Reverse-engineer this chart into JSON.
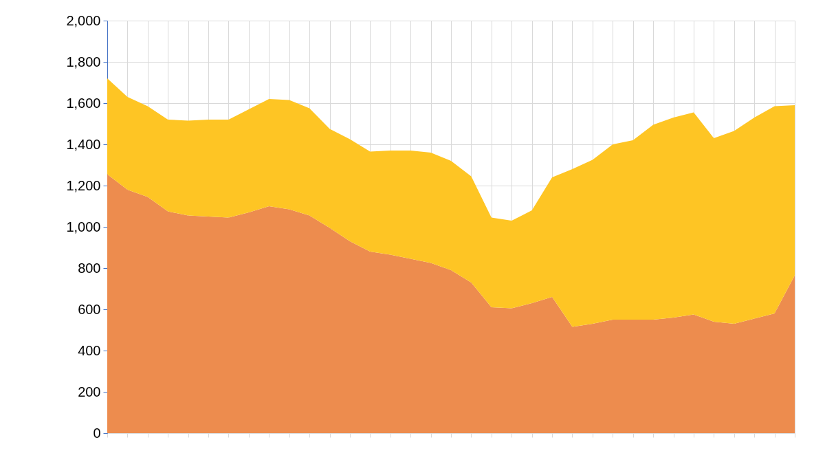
{
  "chart_data": {
    "type": "area",
    "stacked": true,
    "categories": [
      null,
      null,
      null,
      null,
      null,
      null,
      null,
      null,
      null,
      null,
      null,
      null,
      null,
      null,
      null,
      null,
      null,
      null,
      null,
      null,
      null,
      null,
      null,
      null,
      null,
      null,
      null,
      null,
      null,
      null,
      null,
      null,
      null,
      null,
      null
    ],
    "series": [
      {
        "color": "#ed8c4e",
        "values": [
          1255,
          1180,
          1145,
          1075,
          1055,
          1050,
          1045,
          1070,
          1100,
          1085,
          1055,
          995,
          930,
          880,
          865,
          845,
          825,
          790,
          730,
          610,
          605,
          630,
          660,
          515,
          530,
          550,
          550,
          550,
          560,
          575,
          540,
          530,
          555,
          580,
          765
        ]
      },
      {
        "color": "#fec524",
        "values": [
          465,
          450,
          440,
          445,
          460,
          470,
          475,
          500,
          520,
          530,
          520,
          480,
          495,
          485,
          505,
          525,
          535,
          530,
          515,
          435,
          425,
          450,
          580,
          765,
          795,
          850,
          870,
          945,
          970,
          980,
          890,
          935,
          975,
          1005,
          825
        ]
      }
    ],
    "ylim": [
      0,
      2000
    ],
    "yticks": [
      {
        "value": 0,
        "label": "0"
      },
      {
        "value": 200,
        "label": "200"
      },
      {
        "value": 400,
        "label": "400"
      },
      {
        "value": 600,
        "label": "600"
      },
      {
        "value": 800,
        "label": "800"
      },
      {
        "value": 1000,
        "label": "1,000"
      },
      {
        "value": 1200,
        "label": "1,200"
      },
      {
        "value": 1400,
        "label": "1,400"
      },
      {
        "value": 1600,
        "label": "1,600"
      },
      {
        "value": 1800,
        "label": "1,800"
      },
      {
        "value": 2000,
        "label": "2,000"
      }
    ],
    "grid": true
  }
}
